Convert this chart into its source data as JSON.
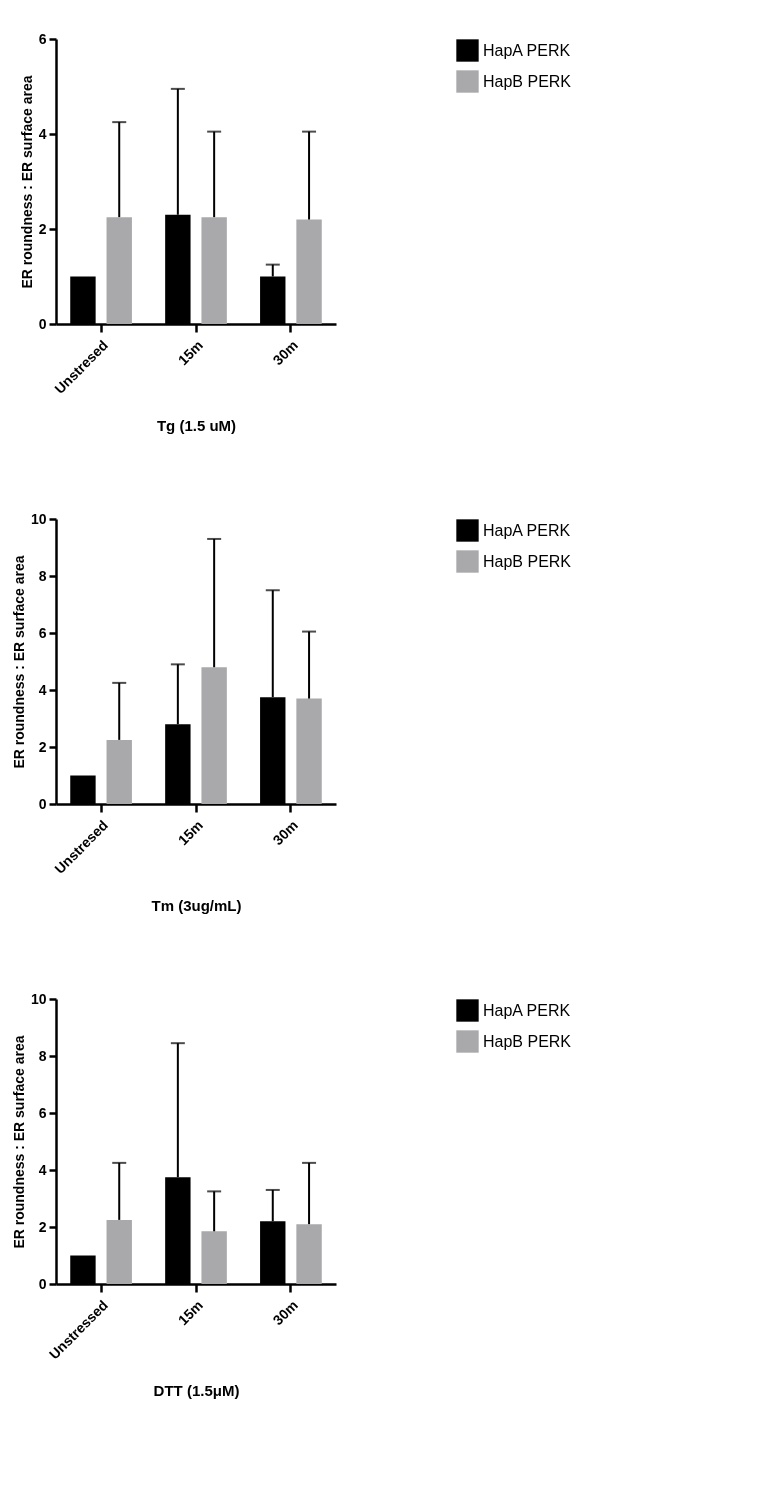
{
  "chart_data": [
    {
      "type": "bar",
      "categories": [
        "Unstresed",
        "15m",
        "30m"
      ],
      "xlabel": "Tg (1.5 uM)",
      "ylabel": "ER roundness : ER surface area",
      "ylim": [
        0,
        6
      ],
      "yticks": [
        0,
        2,
        4,
        6
      ],
      "grid": false,
      "legend": "top right",
      "series": [
        {
          "name": "HapA PERK",
          "color": "#000000",
          "values": [
            1,
            2.3,
            1
          ],
          "errors": [
            null,
            [
              2.3,
              4.95
            ],
            [
              1,
              1.25
            ]
          ]
        },
        {
          "name": "HapB PERK",
          "color": "#a9a9ab",
          "values": [
            2.25,
            2.25,
            2.2
          ],
          "errors": [
            [
              2.25,
              4.25
            ],
            [
              2.25,
              4.05
            ],
            [
              2.2,
              4.05
            ]
          ]
        }
      ]
    },
    {
      "type": "bar",
      "categories": [
        "Unstresed",
        "15m",
        "30m"
      ],
      "xlabel": "Tm (3ug/mL)",
      "ylabel": "ER roundness : ER surface area",
      "ylim": [
        0,
        10
      ],
      "yticks": [
        0,
        2,
        4,
        6,
        8,
        10
      ],
      "grid": false,
      "legend": "top right",
      "series": [
        {
          "name": "HapA PERK",
          "color": "#000000",
          "values": [
            1,
            2.8,
            3.75
          ],
          "errors": [
            null,
            [
              2.8,
              4.9
            ],
            [
              3.75,
              7.5
            ]
          ]
        },
        {
          "name": "HapB PERK",
          "color": "#a9a9ab",
          "values": [
            2.25,
            4.8,
            3.7
          ],
          "errors": [
            [
              2.25,
              4.25
            ],
            [
              4.8,
              9.3
            ],
            [
              3.7,
              6.05
            ]
          ]
        }
      ]
    },
    {
      "type": "bar",
      "categories": [
        "Unstressed",
        "15m",
        "30m"
      ],
      "xlabel": "DTT (1.5μM)",
      "ylabel": "ER roundness : ER surface area",
      "ylim": [
        0,
        10
      ],
      "yticks": [
        0,
        2,
        4,
        6,
        8,
        10
      ],
      "grid": false,
      "legend": "top right",
      "series": [
        {
          "name": "HapA PERK",
          "color": "#000000",
          "values": [
            1,
            3.75,
            2.2
          ],
          "errors": [
            null,
            [
              3.75,
              8.45
            ],
            [
              2.2,
              3.3
            ]
          ]
        },
        {
          "name": "HapB PERK",
          "color": "#a9a9ab",
          "values": [
            2.25,
            1.85,
            2.1
          ],
          "errors": [
            [
              2.25,
              4.25
            ],
            [
              1.85,
              3.25
            ],
            [
              2.1,
              4.25
            ]
          ]
        }
      ]
    }
  ]
}
